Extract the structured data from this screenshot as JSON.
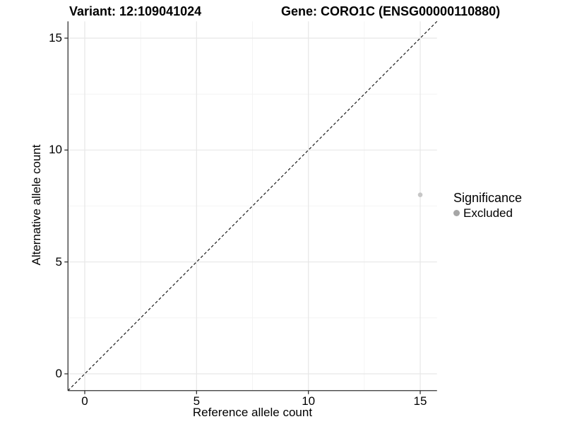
{
  "chart_data": {
    "type": "scatter",
    "title_left": "Variant: 12:109041024",
    "title_right": "Gene: CORO1C (ENSG00000110880)",
    "xlabel": "Reference allele count",
    "ylabel": "Alternative allele count",
    "xlim": [
      -0.75,
      15.75
    ],
    "ylim": [
      -0.75,
      15.75
    ],
    "x_ticks": [
      0,
      5,
      10,
      15
    ],
    "y_ticks": [
      0,
      5,
      10,
      15
    ],
    "x_minor_ticks": [
      2.5,
      7.5,
      12.5
    ],
    "y_minor_ticks": [
      2.5,
      7.5,
      12.5
    ],
    "grid": "major+minor, light gray on white",
    "legend_position": "right",
    "identity_line": {
      "style": "dashed",
      "from": [
        -0.75,
        -0.75
      ],
      "to": [
        15.75,
        15.75
      ]
    },
    "points": [
      {
        "x": 15,
        "y": 8,
        "significance": "Excluded"
      }
    ],
    "legend": {
      "title": "Significance",
      "items": [
        {
          "label": "Excluded"
        }
      ]
    }
  },
  "colors": {
    "background": "#ffffff",
    "grid_major": "#e7e7e7",
    "grid_minor": "#f1f1f1",
    "axis_line": "#333333",
    "tick_mark": "#333333",
    "dashed_line": "#1a1a1a",
    "point_fill": "#c7c7c7",
    "legend_key": "#a6a6a6",
    "text": "#000000"
  }
}
